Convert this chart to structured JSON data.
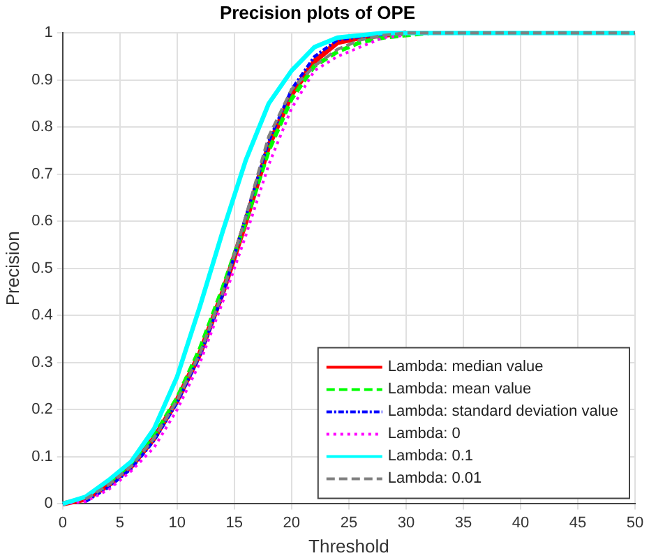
{
  "chart_data": {
    "type": "line",
    "title": "Precision plots of OPE",
    "xlabel": "Threshold",
    "ylabel": "Precision",
    "xlim": [
      0,
      50
    ],
    "ylim": [
      0,
      1
    ],
    "xticks": [
      0,
      5,
      10,
      15,
      20,
      25,
      30,
      35,
      40,
      45,
      50
    ],
    "yticks": [
      0,
      0.1,
      0.2,
      0.3,
      0.4,
      0.5,
      0.6,
      0.7,
      0.8,
      0.9,
      1
    ],
    "grid": true,
    "legend": "bottom right",
    "marker": "none",
    "x": [
      0,
      2,
      4,
      6,
      8,
      10,
      12,
      14,
      16,
      18,
      20,
      22,
      24,
      26,
      28,
      30,
      32,
      35,
      40,
      45,
      50
    ],
    "series": [
      {
        "name": "Lambda: median value",
        "color": "#ff0000",
        "line_style": "solid",
        "values": [
          0,
          0.01,
          0.04,
          0.08,
          0.14,
          0.22,
          0.32,
          0.45,
          0.6,
          0.76,
          0.87,
          0.94,
          0.98,
          0.99,
          0.995,
          1,
          null,
          null,
          null,
          null,
          null
        ]
      },
      {
        "name": "Lambda: mean value",
        "color": "#00ff00",
        "line_style": "dashed",
        "values": [
          null,
          null,
          0.045,
          0.085,
          0.145,
          0.225,
          0.33,
          0.46,
          0.6,
          0.75,
          0.86,
          0.93,
          0.96,
          0.98,
          0.99,
          0.995,
          1,
          null,
          null,
          null,
          null
        ]
      },
      {
        "name": "Lambda: standard deviation value",
        "color": "#0000ff",
        "line_style": "dashdot",
        "values": [
          null,
          0.005,
          0.035,
          0.075,
          0.135,
          0.215,
          0.315,
          0.445,
          0.61,
          0.77,
          0.88,
          0.95,
          0.985,
          0.992,
          0.997,
          null,
          null,
          null,
          null,
          null,
          null
        ]
      },
      {
        "name": "Lambda: 0",
        "color": "#ff00ff",
        "line_style": "dotted",
        "values": [
          0,
          0.005,
          0.03,
          0.07,
          0.12,
          0.2,
          0.3,
          0.43,
          0.57,
          0.72,
          0.84,
          0.92,
          0.95,
          0.97,
          0.99,
          0.995,
          null,
          null,
          null,
          null,
          null
        ]
      },
      {
        "name": "Lambda: 0.1",
        "color": "#00ffff",
        "line_style": "solid",
        "values": [
          0,
          0.015,
          0.05,
          0.09,
          0.16,
          0.27,
          0.42,
          0.58,
          0.73,
          0.85,
          0.92,
          0.97,
          0.99,
          0.995,
          1,
          1,
          1,
          1,
          1,
          1,
          1
        ]
      },
      {
        "name": "Lambda: 0.01",
        "color": "#808080",
        "line_style": "dashed",
        "values": [
          null,
          0.01,
          0.04,
          0.08,
          0.14,
          0.22,
          0.32,
          0.45,
          0.61,
          0.78,
          0.88,
          0.93,
          0.965,
          0.985,
          0.995,
          1,
          1,
          1,
          1,
          1,
          1
        ]
      }
    ]
  }
}
